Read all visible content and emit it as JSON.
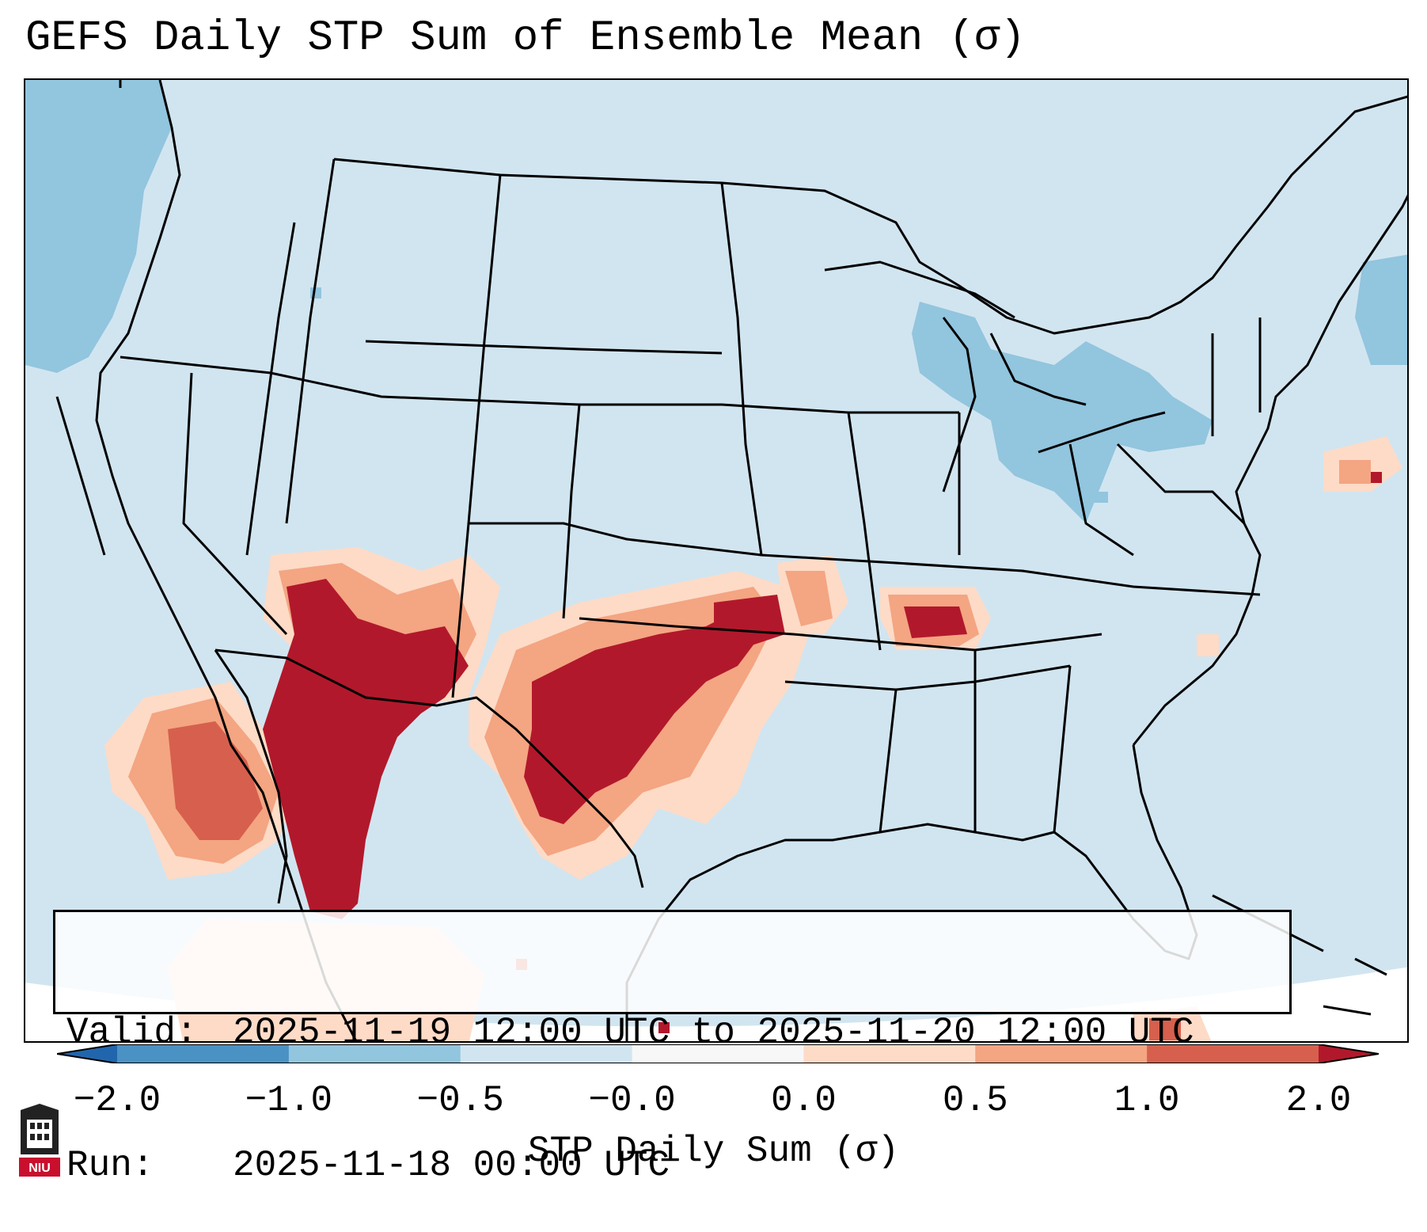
{
  "title": "GEFS Daily STP Sum of Ensemble Mean (σ)",
  "info": {
    "valid_label": "Valid:",
    "valid_value": "2025-11-19 12:00 UTC to 2025-11-20 12:00 UTC",
    "run_label": "Run:",
    "run_value": "2025-11-18 00:00 UTC"
  },
  "colorbar": {
    "label": "STP Daily Sum (σ)",
    "ticks": [
      "−2.0",
      "−1.0",
      "−0.5",
      "−0.0",
      "0.0",
      "0.5",
      "1.0",
      "2.0"
    ],
    "bins": [
      {
        "from": "−2.0",
        "to": "−1.0",
        "color": "#4a91c4"
      },
      {
        "from": "−1.0",
        "to": "−0.5",
        "color": "#92c5de"
      },
      {
        "from": "−0.5",
        "to": "−0.0",
        "color": "#d1e5f0"
      },
      {
        "from": "−0.0",
        "to": "0.0",
        "color": "#f7f7f7"
      },
      {
        "from": "0.0",
        "to": "0.5",
        "color": "#fddbc7"
      },
      {
        "from": "0.5",
        "to": "1.0",
        "color": "#f4a582"
      },
      {
        "from": "1.0",
        "to": "2.0",
        "color": "#d6604d"
      }
    ],
    "under_color": "#2166ac",
    "over_color": "#b2182b"
  },
  "logo": {
    "text": "NIU",
    "color": "#c8102e"
  },
  "colors": {
    "background_field": "#d1e5f0",
    "negative_mid": "#92c5de",
    "positive_light": "#fddbc7",
    "positive_mid": "#f4a582",
    "positive_high": "#d6604d",
    "positive_max": "#b2182b"
  },
  "map_features": [
    "state-borders",
    "coastlines",
    "country-borders"
  ]
}
